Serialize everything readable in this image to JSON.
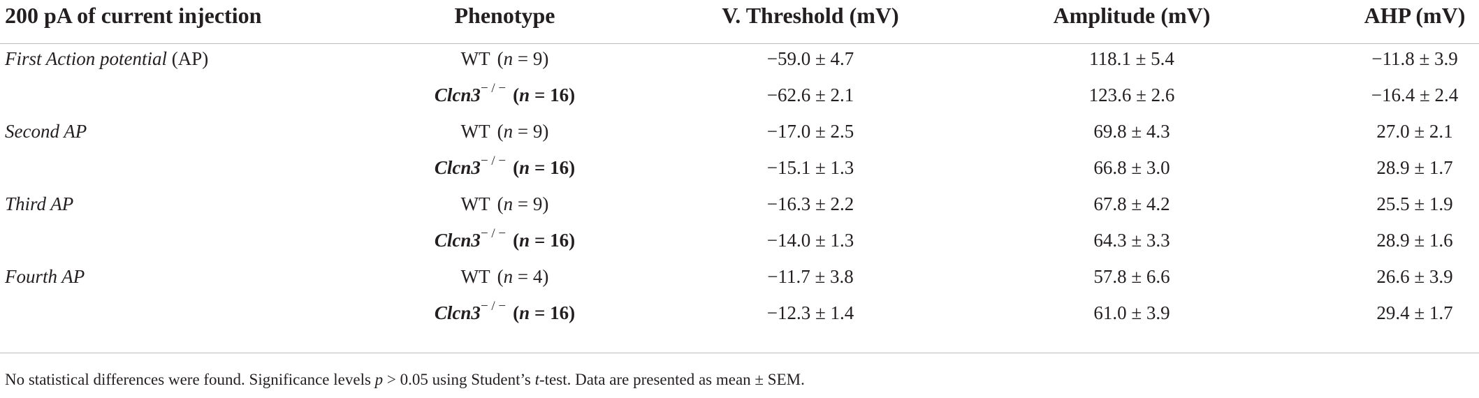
{
  "table": {
    "headers": {
      "condition": "200 pA of current injection",
      "phenotype": "Phenotype",
      "threshold": "V. Threshold (mV)",
      "amplitude": "Amplitude (mV)",
      "ahp": "AHP (mV)"
    },
    "rows": [
      {
        "label_italic": "First Action potential",
        "label_rest": " (AP)",
        "genotype": "WT",
        "n": "9",
        "threshold": "−59.0 ± 4.7",
        "amplitude": "118.1 ± 5.4",
        "ahp": "−11.8 ± 3.9"
      },
      {
        "label_italic": "",
        "label_rest": "",
        "genotype": "Clcn3",
        "superscript": "− / −",
        "n": "16",
        "threshold": "−62.6 ± 2.1",
        "amplitude": "123.6 ± 2.6",
        "ahp": "−16.4 ± 2.4"
      },
      {
        "label_italic": "Second AP",
        "label_rest": "",
        "genotype": "WT",
        "n": "9",
        "threshold": "−17.0 ± 2.5",
        "amplitude": "69.8 ± 4.3",
        "ahp": "27.0 ± 2.1"
      },
      {
        "label_italic": "",
        "label_rest": "",
        "genotype": "Clcn3",
        "superscript": "− / −",
        "n": "16",
        "threshold": "−15.1 ± 1.3",
        "amplitude": "66.8 ± 3.0",
        "ahp": "28.9 ± 1.7"
      },
      {
        "label_italic": "Third AP",
        "label_rest": "",
        "genotype": "WT",
        "n": "9",
        "threshold": "−16.3 ± 2.2",
        "amplitude": "67.8 ± 4.2",
        "ahp": "25.5 ± 1.9"
      },
      {
        "label_italic": "",
        "label_rest": "",
        "genotype": "Clcn3",
        "superscript": "− / −",
        "n": "16",
        "threshold": "−14.0 ± 1.3",
        "amplitude": "64.3 ± 3.3",
        "ahp": "28.9 ± 1.6"
      },
      {
        "label_italic": "Fourth AP",
        "label_rest": "",
        "genotype": "WT",
        "n": "4",
        "threshold": "−11.7 ± 3.8",
        "amplitude": "57.8 ± 6.6",
        "ahp": "26.6 ± 3.9"
      },
      {
        "label_italic": "",
        "label_rest": "",
        "genotype": "Clcn3",
        "superscript": "− / −",
        "n": "16",
        "threshold": "−12.3 ± 1.4",
        "amplitude": "61.0 ± 3.9",
        "ahp": "29.4 ± 1.7"
      }
    ]
  },
  "footnote": {
    "part1": "No statistical differences were found. Significance levels ",
    "p_symbol": "p",
    "part2": " > 0.05 using Student’s ",
    "t_symbol": "t",
    "part3": "-test. Data are presented as mean ± SEM."
  },
  "symbols": {
    "n_symbol": "n",
    "equals": " = ",
    "open_paren": "(",
    "close_paren": ")"
  },
  "colors": {
    "text": "#231f20",
    "rule": "#bdbdbd"
  }
}
